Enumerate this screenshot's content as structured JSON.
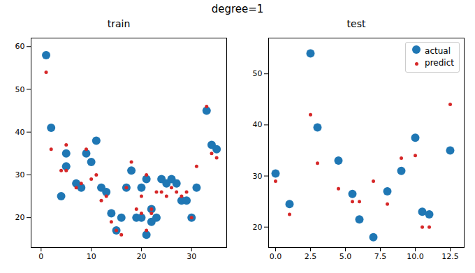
{
  "title": "degree=1",
  "chart_data": [
    {
      "type": "scatter",
      "title": "train",
      "series": [
        {
          "name": "actual",
          "color": "#1f77b4",
          "x": [
            1,
            2,
            4,
            5,
            5,
            7,
            8,
            9,
            10,
            11,
            12,
            13,
            14,
            15,
            16,
            17,
            18,
            19,
            20,
            20,
            21,
            21,
            22,
            22,
            23,
            24,
            25,
            26,
            27,
            28,
            29,
            30,
            31,
            33,
            34,
            35
          ],
          "values": [
            58,
            41,
            25,
            32,
            35,
            28,
            27,
            35,
            33,
            38,
            27,
            26,
            21,
            17,
            20,
            27,
            31,
            20,
            27,
            20,
            29,
            16,
            19,
            22,
            20,
            29,
            28,
            29,
            28,
            24,
            24,
            20,
            27,
            45,
            37,
            36
          ]
        },
        {
          "name": "predict",
          "color": "#d62728",
          "x": [
            1,
            2,
            4,
            5,
            5,
            7,
            8,
            9,
            10,
            11,
            12,
            13,
            14,
            15,
            16,
            17,
            18,
            19,
            20,
            20,
            21,
            21,
            22,
            22,
            23,
            24,
            25,
            26,
            27,
            28,
            29,
            30,
            31,
            33,
            34,
            35
          ],
          "values": [
            54,
            36,
            31,
            31,
            37,
            27,
            28,
            36,
            29,
            30,
            24,
            25,
            19,
            17,
            16,
            27,
            33,
            22,
            25,
            21,
            30,
            17,
            22,
            21,
            26,
            26,
            25,
            27,
            26,
            25,
            26,
            20,
            32,
            46,
            35,
            34
          ]
        }
      ],
      "xlim": [
        -2,
        37
      ],
      "ylim": [
        13,
        62
      ],
      "xticks": [
        0,
        10,
        20,
        30
      ],
      "yticks": [
        20,
        30,
        40,
        50,
        60
      ]
    },
    {
      "type": "scatter",
      "title": "test",
      "series": [
        {
          "name": "actual",
          "color": "#1f77b4",
          "x": [
            0.0,
            1.0,
            2.5,
            3.0,
            4.5,
            5.5,
            6.0,
            7.0,
            8.0,
            9.0,
            10.0,
            10.5,
            11.0,
            12.5
          ],
          "values": [
            30.5,
            24.5,
            54.0,
            39.5,
            33.0,
            26.5,
            21.5,
            18.0,
            27.0,
            31.0,
            37.5,
            23.0,
            22.5,
            35.0
          ]
        },
        {
          "name": "predict",
          "color": "#d62728",
          "x": [
            0.0,
            1.0,
            2.5,
            3.0,
            4.5,
            5.5,
            6.0,
            7.0,
            8.0,
            9.0,
            10.0,
            10.5,
            11.0,
            12.5
          ],
          "values": [
            29.0,
            22.5,
            42.0,
            32.5,
            27.5,
            25.0,
            25.0,
            29.0,
            24.5,
            33.5,
            34.0,
            20.0,
            20.0,
            44.0
          ]
        }
      ],
      "xlim": [
        -0.5,
        13.5
      ],
      "ylim": [
        16,
        57
      ],
      "xticks": [
        {
          "value": 0,
          "label": "0.0"
        },
        2.5,
        {
          "value": 5,
          "label": "5.0"
        },
        7.5,
        {
          "value": 10,
          "label": "10.0"
        },
        12.5
      ],
      "yticks": [
        20,
        30,
        40,
        50
      ],
      "legend": "upper right"
    }
  ]
}
